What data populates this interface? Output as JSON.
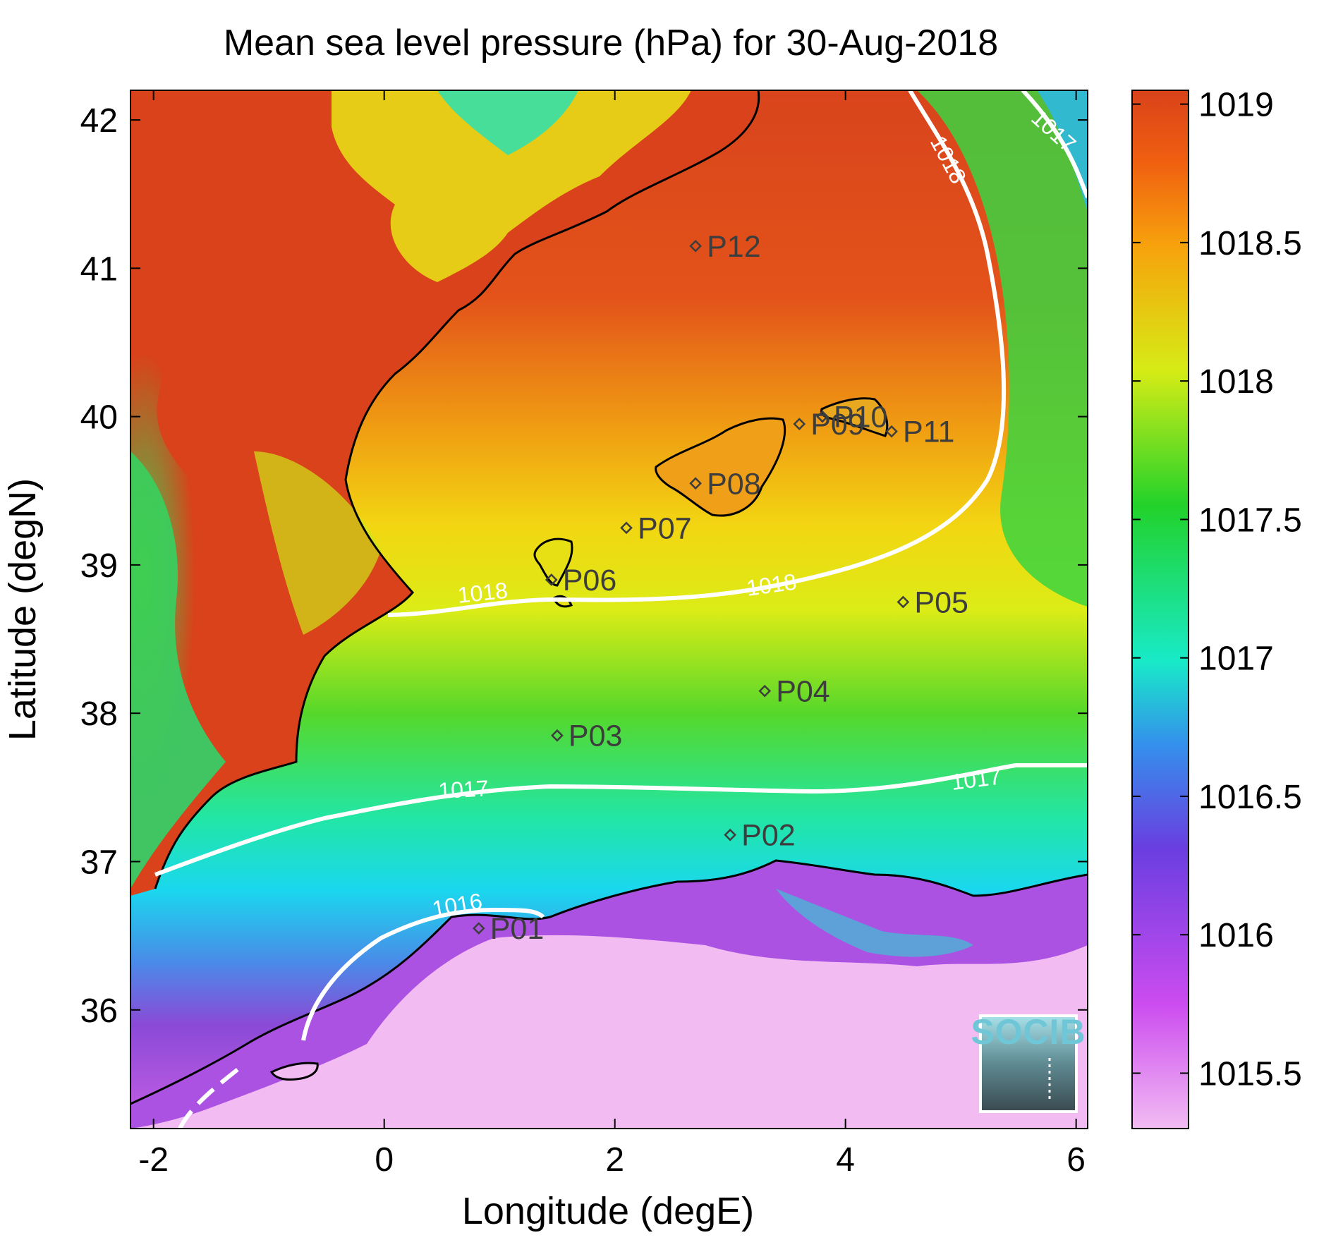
{
  "title": "Mean sea level pressure (hPa) for 30-Aug-2018",
  "xlabel": "Longitude (degE)",
  "ylabel": "Latitude (degN)",
  "x_ticks": [
    "-2",
    "0",
    "2",
    "4",
    "6"
  ],
  "y_ticks": [
    "36",
    "37",
    "38",
    "39",
    "40",
    "41",
    "42"
  ],
  "colorbar": {
    "ticks": [
      "1015.5",
      "1016",
      "1016.5",
      "1017",
      "1017.5",
      "1018",
      "1018.5",
      "1019"
    ]
  },
  "contour_labels": [
    "1018",
    "1018",
    "1018",
    "1017",
    "1017",
    "1017",
    "1016"
  ],
  "stations": [
    {
      "id": "P01",
      "lon": 0.82,
      "lat": 36.55
    },
    {
      "id": "P02",
      "lon": 3.0,
      "lat": 37.18
    },
    {
      "id": "P03",
      "lon": 1.5,
      "lat": 37.85
    },
    {
      "id": "P04",
      "lon": 3.3,
      "lat": 38.15
    },
    {
      "id": "P05",
      "lon": 4.5,
      "lat": 38.75
    },
    {
      "id": "P06",
      "lon": 1.45,
      "lat": 38.9
    },
    {
      "id": "P07",
      "lon": 2.1,
      "lat": 39.25
    },
    {
      "id": "P08",
      "lon": 2.7,
      "lat": 39.55
    },
    {
      "id": "P09",
      "lon": 3.6,
      "lat": 39.95
    },
    {
      "id": "P10",
      "lon": 3.8,
      "lat": 40.0
    },
    {
      "id": "P11",
      "lon": 4.4,
      "lat": 39.9
    },
    {
      "id": "P12",
      "lon": 2.7,
      "lat": 41.15
    }
  ],
  "logo": {
    "text": "SOCIB"
  },
  "colors": {
    "high": "#d9421a",
    "mid": "#f0ec10",
    "green": "#2ad42a",
    "cyan": "#10ecd6",
    "blue": "#3a7ce6",
    "violet": "#7a3ad4",
    "low": "#f2bcf2",
    "coast": "#000000",
    "contour": "#ffffff"
  }
}
